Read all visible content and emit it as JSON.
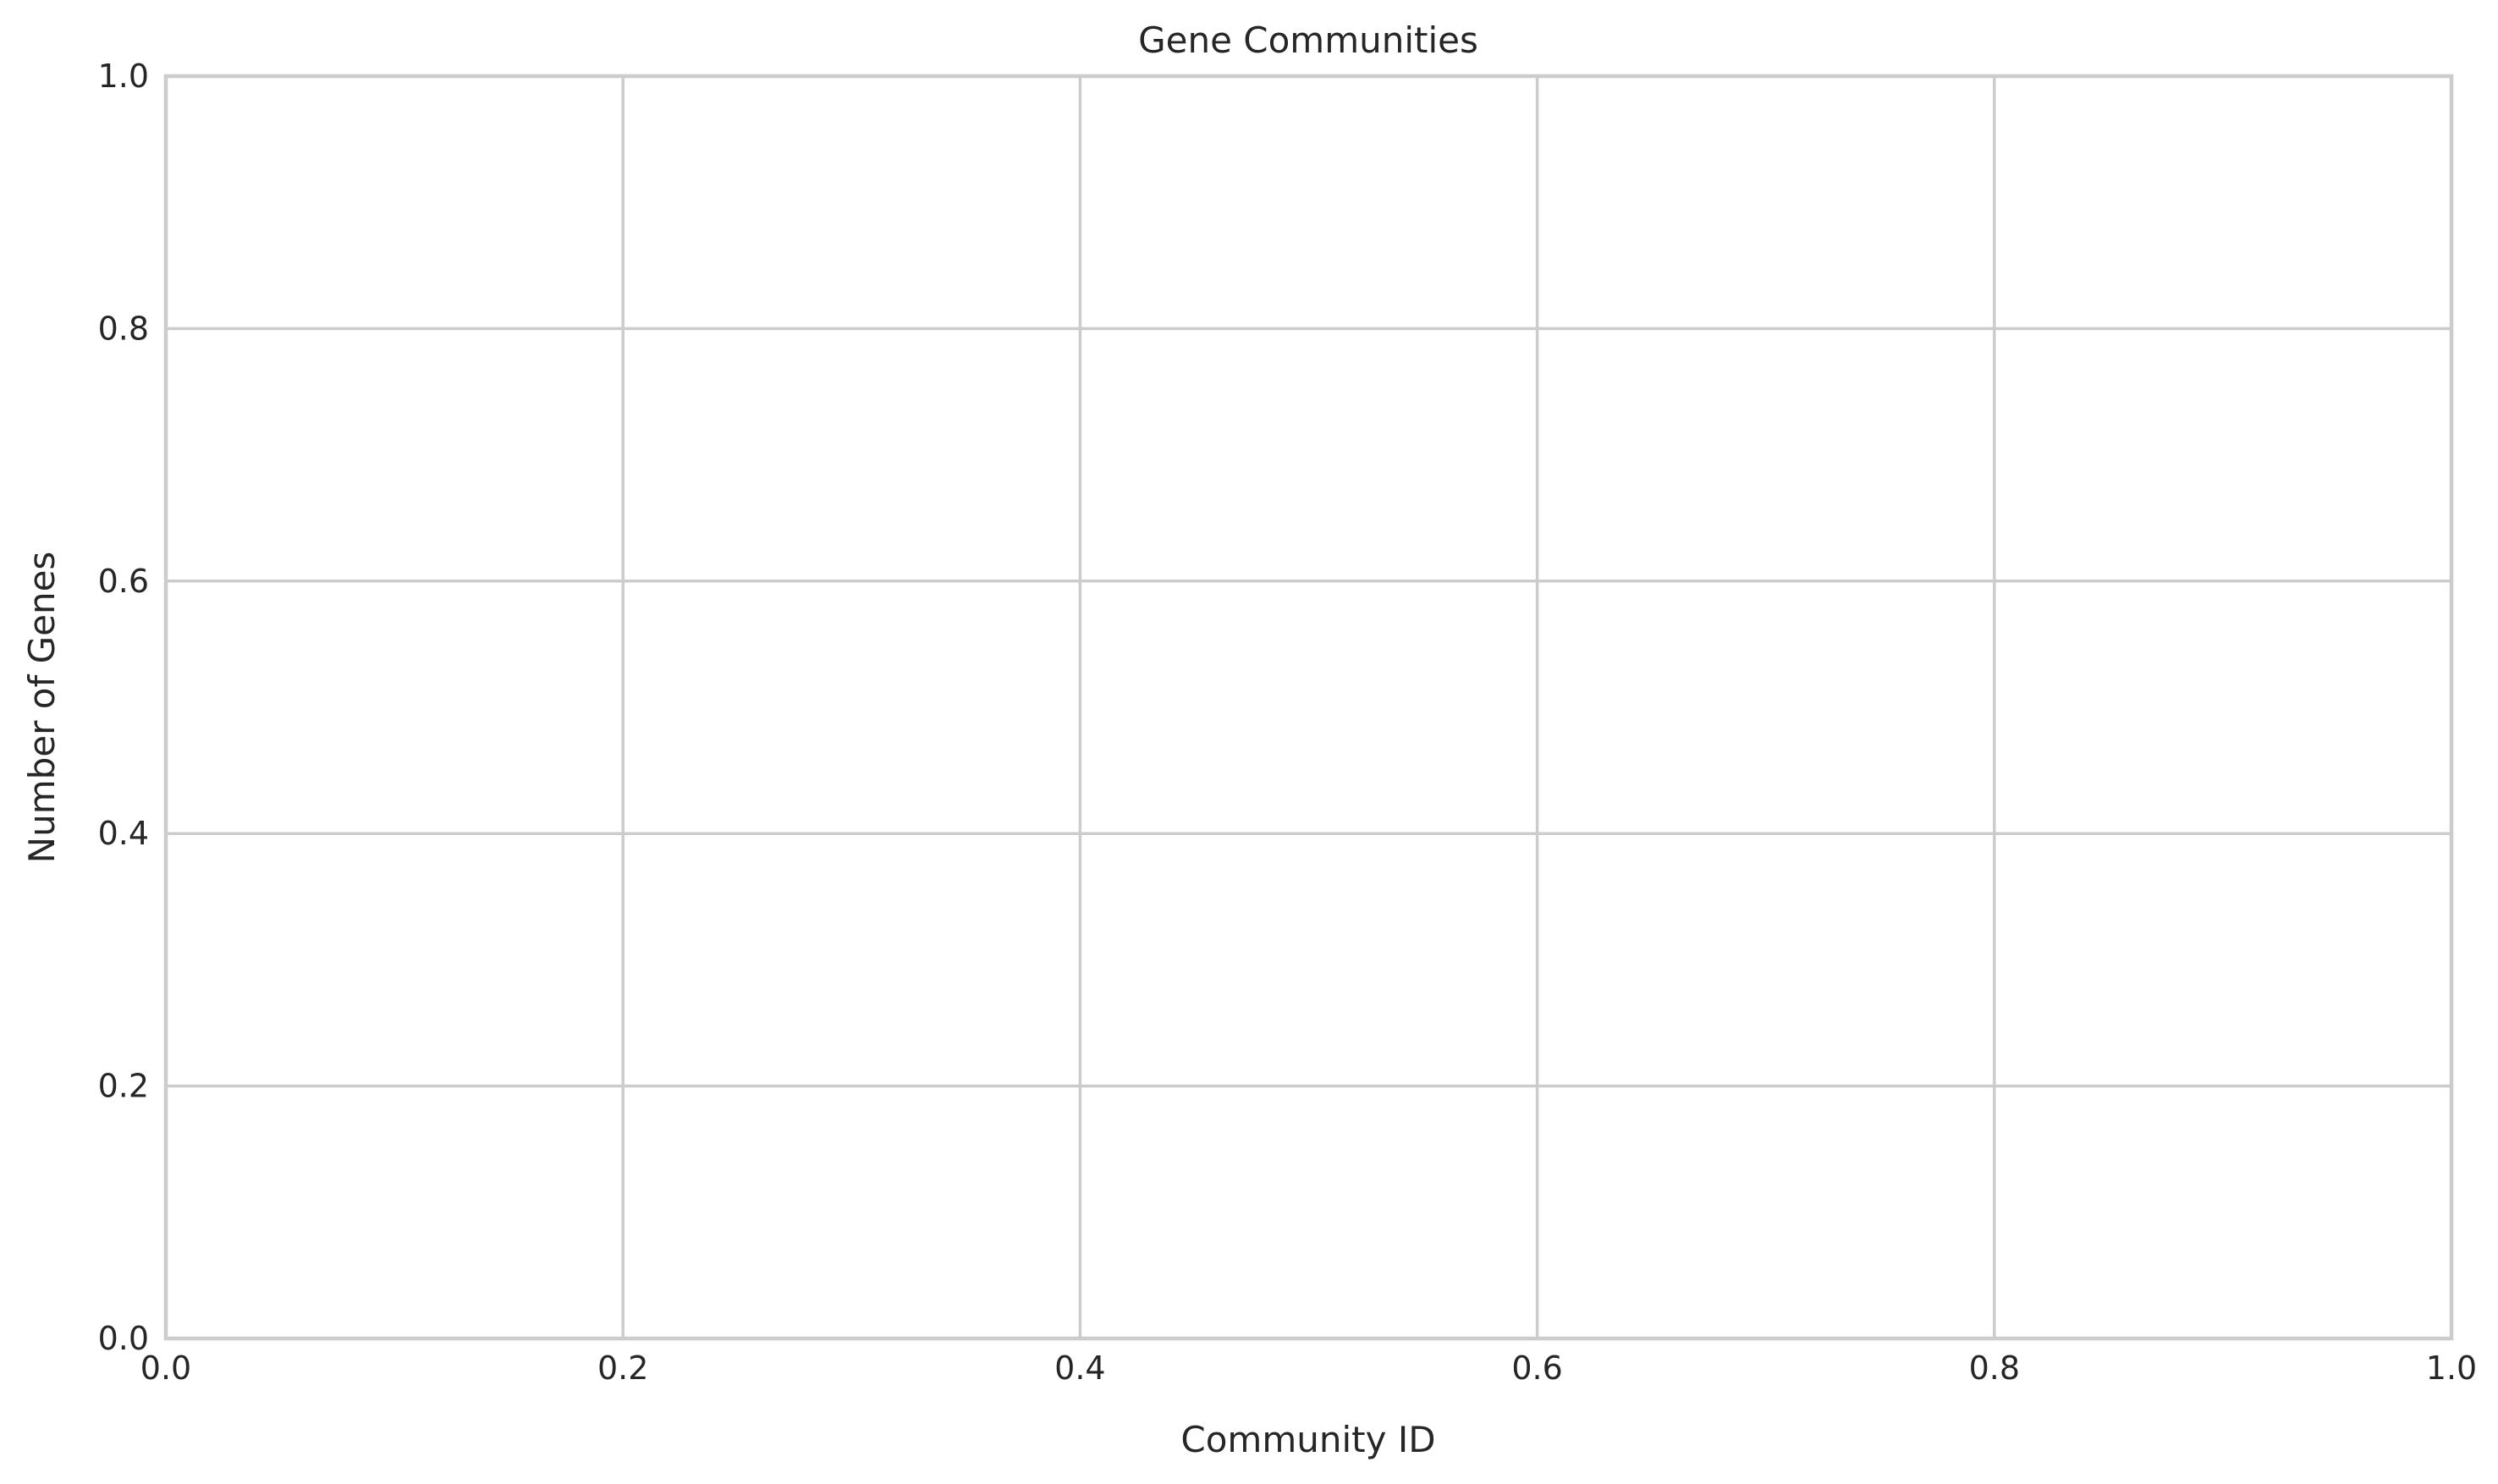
{
  "chart_data": {
    "type": "bar",
    "title": "Gene Communities",
    "xlabel": "Community ID",
    "ylabel": "Number of Genes",
    "xlim": [
      0.0,
      1.0
    ],
    "ylim": [
      0.0,
      1.0
    ],
    "xticks": [
      "0.0",
      "0.2",
      "0.4",
      "0.6",
      "0.8",
      "1.0"
    ],
    "yticks": [
      "0.0",
      "0.2",
      "0.4",
      "0.6",
      "0.8",
      "1.0"
    ],
    "categories": [],
    "values": [],
    "grid": true,
    "colors": {
      "grid": "#cccccc",
      "text": "#262626",
      "background": "#ffffff"
    }
  }
}
